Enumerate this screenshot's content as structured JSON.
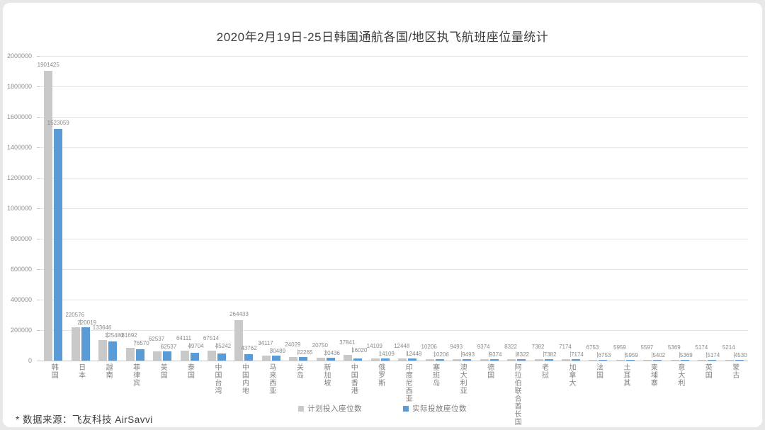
{
  "page": {
    "background": "#e8e8e8",
    "card_background": "#ffffff"
  },
  "chart_data": {
    "type": "bar",
    "title": "2020年2月19日-25日韩国通航各国/地区执飞航班座位量统计",
    "categories": [
      "韩国",
      "日本",
      "越南",
      "菲律宾",
      "美国",
      "泰国",
      "中国台湾",
      "中国内地",
      "马来西亚",
      "关岛",
      "新加坡",
      "中国香港",
      "俄罗斯",
      "印度尼西亚",
      "塞班岛",
      "澳大利亚",
      "德国",
      "阿拉伯联合酋长国",
      "老挝",
      "加拿大",
      "法国",
      "土耳其",
      "柬埔寨",
      "意大利",
      "英国",
      "蒙古"
    ],
    "series": [
      {
        "name": "计划投入座位数",
        "color": "#c9c9c9",
        "values": [
          1901425,
          220576,
          133646,
          81692,
          62537,
          64111,
          67514,
          264433,
          34117,
          24029,
          20750,
          37841,
          14109,
          12448,
          10206,
          9493,
          9374,
          8322,
          7382,
          7174,
          6753,
          5959,
          5597,
          5369,
          5174,
          5214
        ]
      },
      {
        "name": "实际投放座位数",
        "color": "#5b9bd5",
        "values": [
          1523059,
          220019,
          125480,
          76570,
          62537,
          49704,
          45242,
          43762,
          30489,
          22265,
          20436,
          16020,
          14109,
          12448,
          10206,
          9493,
          9374,
          8322,
          7382,
          7174,
          6753,
          5959,
          5402,
          5369,
          5174,
          4530
        ]
      }
    ],
    "ylabel": "",
    "xlabel": "",
    "ylim": [
      0,
      2000000
    ],
    "ytick_step": 200000,
    "grid": true,
    "legend_position": "bottom",
    "colors": {
      "gridline": "#e4e4e4",
      "axis": "#c6c6c6",
      "label_text": "#8a8a8a"
    }
  },
  "footer": {
    "source_note": "* 数据来源：飞友科技 AirSavvi"
  }
}
